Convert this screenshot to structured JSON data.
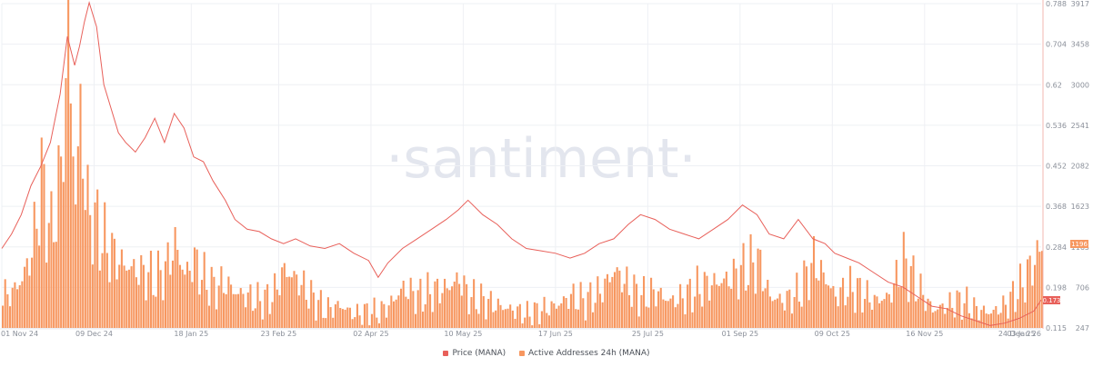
{
  "chart_data": {
    "type": "bar",
    "title": "",
    "watermark": "·santiment·",
    "x_ticks": [
      "01 Nov 24",
      "09 Dec 24",
      "18 Jan 25",
      "23 Feb 25",
      "02 Apr 25",
      "10 May 25",
      "17 Jun 25",
      "25 Jul 25",
      "01 Sep 25",
      "09 Oct 25",
      "16 Nov 25",
      "24 Dec 25",
      "03 Jan 26"
    ],
    "y_price_ticks": [
      "0.788",
      "0.704",
      "0.62",
      "0.536",
      "0.452",
      "0.368",
      "0.284",
      "0.198",
      "0.115"
    ],
    "y_addresses_ticks": [
      "3917",
      "3458",
      "3000",
      "2541",
      "2082",
      "1623",
      "1165",
      "706",
      "247"
    ],
    "price_ylim": [
      0.115,
      0.788
    ],
    "addresses_ylim": [
      247,
      3917
    ],
    "last_price_label": "0.173",
    "last_addresses_label": "1196",
    "series": [
      {
        "name": "Price (MANA)",
        "color": "#e8605a",
        "x": [
          "2024-11-01",
          "2024-11-05",
          "2024-11-09",
          "2024-11-13",
          "2024-11-17",
          "2024-11-21",
          "2024-11-25",
          "2024-11-28",
          "2024-12-01",
          "2024-12-03",
          "2024-12-05",
          "2024-12-07",
          "2024-12-10",
          "2024-12-13",
          "2024-12-16",
          "2024-12-19",
          "2024-12-22",
          "2024-12-26",
          "2024-12-30",
          "2025-01-03",
          "2025-01-07",
          "2025-01-11",
          "2025-01-15",
          "2025-01-19",
          "2025-01-23",
          "2025-01-27",
          "2025-02-01",
          "2025-02-05",
          "2025-02-10",
          "2025-02-15",
          "2025-02-20",
          "2025-02-25",
          "2025-03-02",
          "2025-03-08",
          "2025-03-14",
          "2025-03-20",
          "2025-03-26",
          "2025-04-01",
          "2025-04-05",
          "2025-04-09",
          "2025-04-15",
          "2025-04-21",
          "2025-04-27",
          "2025-05-03",
          "2025-05-08",
          "2025-05-12",
          "2025-05-18",
          "2025-05-24",
          "2025-05-30",
          "2025-06-05",
          "2025-06-11",
          "2025-06-17",
          "2025-06-23",
          "2025-06-29",
          "2025-07-05",
          "2025-07-11",
          "2025-07-17",
          "2025-07-22",
          "2025-07-28",
          "2025-08-03",
          "2025-08-09",
          "2025-08-15",
          "2025-08-21",
          "2025-08-27",
          "2025-09-02",
          "2025-09-08",
          "2025-09-13",
          "2025-09-19",
          "2025-09-25",
          "2025-10-01",
          "2025-10-06",
          "2025-10-10",
          "2025-10-15",
          "2025-10-20",
          "2025-10-26",
          "2025-11-01",
          "2025-11-07",
          "2025-11-13",
          "2025-11-19",
          "2025-11-25",
          "2025-12-01",
          "2025-12-07",
          "2025-12-13",
          "2025-12-19",
          "2025-12-25",
          "2025-12-31",
          "2026-01-03"
        ],
        "values": [
          0.28,
          0.31,
          0.35,
          0.41,
          0.45,
          0.5,
          0.6,
          0.72,
          0.66,
          0.7,
          0.75,
          0.79,
          0.74,
          0.62,
          0.57,
          0.52,
          0.5,
          0.48,
          0.51,
          0.55,
          0.5,
          0.56,
          0.53,
          0.47,
          0.46,
          0.42,
          0.38,
          0.34,
          0.32,
          0.315,
          0.3,
          0.29,
          0.3,
          0.285,
          0.28,
          0.29,
          0.27,
          0.255,
          0.22,
          0.25,
          0.28,
          0.3,
          0.32,
          0.34,
          0.36,
          0.38,
          0.35,
          0.33,
          0.3,
          0.28,
          0.275,
          0.27,
          0.26,
          0.27,
          0.29,
          0.3,
          0.33,
          0.35,
          0.34,
          0.32,
          0.31,
          0.3,
          0.32,
          0.34,
          0.37,
          0.35,
          0.31,
          0.3,
          0.34,
          0.3,
          0.29,
          0.27,
          0.26,
          0.25,
          0.23,
          0.21,
          0.2,
          0.18,
          0.16,
          0.155,
          0.14,
          0.13,
          0.12,
          0.125,
          0.135,
          0.15,
          0.173
        ]
      },
      {
        "name": "Active Addresses 24h (MANA)",
        "color": "#f79760",
        "x": [
          "2024-11-01",
          "2024-11-05",
          "2024-11-09",
          "2024-11-13",
          "2024-11-17",
          "2024-11-21",
          "2024-11-25",
          "2024-11-28",
          "2024-12-01",
          "2024-12-03",
          "2024-12-05",
          "2024-12-07",
          "2024-12-10",
          "2024-12-13",
          "2024-12-16",
          "2024-12-19",
          "2024-12-22",
          "2024-12-26",
          "2024-12-30",
          "2025-01-03",
          "2025-01-07",
          "2025-01-11",
          "2025-01-15",
          "2025-01-19",
          "2025-01-23",
          "2025-01-27",
          "2025-02-01",
          "2025-02-05",
          "2025-02-10",
          "2025-02-15",
          "2025-02-20",
          "2025-02-25",
          "2025-03-02",
          "2025-03-08",
          "2025-03-14",
          "2025-03-20",
          "2025-03-26",
          "2025-04-01",
          "2025-04-05",
          "2025-04-09",
          "2025-04-15",
          "2025-04-21",
          "2025-04-27",
          "2025-05-03",
          "2025-05-08",
          "2025-05-12",
          "2025-05-18",
          "2025-05-24",
          "2025-05-30",
          "2025-06-05",
          "2025-06-11",
          "2025-06-17",
          "2025-06-23",
          "2025-06-29",
          "2025-07-05",
          "2025-07-11",
          "2025-07-17",
          "2025-07-22",
          "2025-07-28",
          "2025-08-03",
          "2025-08-09",
          "2025-08-15",
          "2025-08-21",
          "2025-08-27",
          "2025-09-02",
          "2025-09-08",
          "2025-09-13",
          "2025-09-19",
          "2025-09-25",
          "2025-10-01",
          "2025-10-06",
          "2025-10-10",
          "2025-10-15",
          "2025-10-20",
          "2025-10-26",
          "2025-11-01",
          "2025-11-07",
          "2025-11-13",
          "2025-11-19",
          "2025-11-25",
          "2025-12-01",
          "2025-12-07",
          "2025-12-13",
          "2025-12-19",
          "2025-12-25",
          "2025-12-31",
          "2026-01-03"
        ],
        "values": [
          600,
          650,
          800,
          1100,
          1900,
          1300,
          2000,
          3500,
          1700,
          2700,
          1800,
          1500,
          1400,
          1200,
          1100,
          1000,
          950,
          900,
          850,
          800,
          900,
          1200,
          850,
          1000,
          800,
          700,
          750,
          650,
          600,
          550,
          600,
          900,
          800,
          600,
          450,
          500,
          400,
          430,
          420,
          500,
          700,
          600,
          650,
          700,
          800,
          600,
          550,
          500,
          450,
          400,
          450,
          500,
          600,
          550,
          650,
          900,
          700,
          600,
          650,
          550,
          600,
          700,
          750,
          800,
          900,
          1000,
          600,
          550,
          650,
          1000,
          800,
          600,
          700,
          650,
          550,
          600,
          1000,
          700,
          450,
          500,
          550,
          450,
          420,
          500,
          700,
          1000,
          1196
        ]
      }
    ]
  }
}
